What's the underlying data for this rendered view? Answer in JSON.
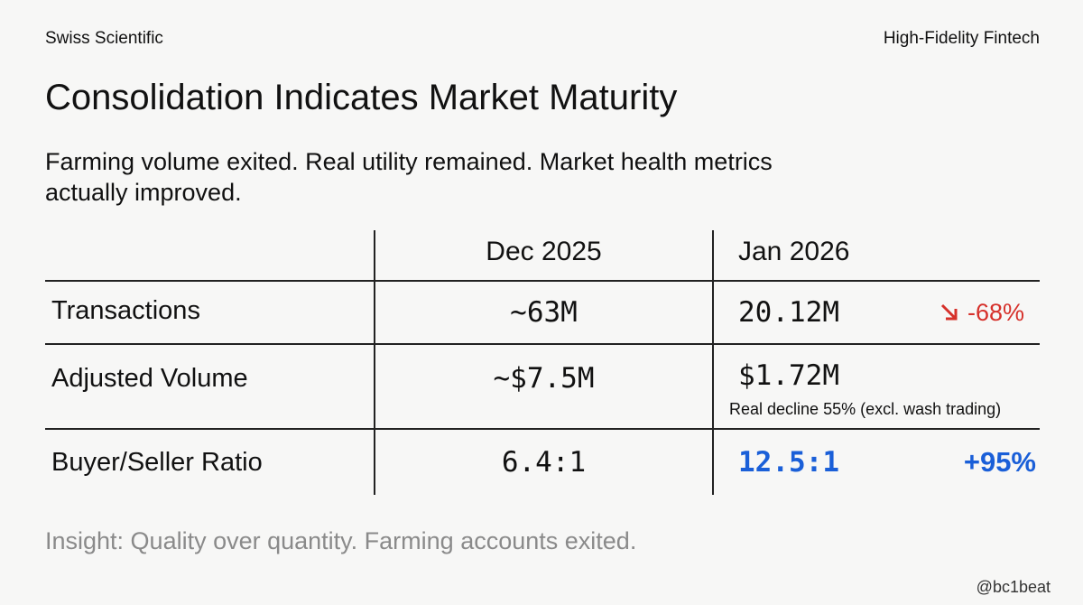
{
  "header": {
    "left": "Swiss Scientific",
    "right": "High-Fidelity Fintech"
  },
  "title": "Consolidation Indicates Market Maturity",
  "subtitle": "Farming volume exited. Real utility remained. Market health metrics actually improved.",
  "table": {
    "columns": [
      "Dec 2025",
      "Jan 2026"
    ],
    "rows": [
      {
        "label": "Transactions",
        "dec": "~63M",
        "jan": "20.12M",
        "change": "-68%"
      },
      {
        "label": "Adjusted Volume",
        "dec": "~$7.5M",
        "jan": "$1.72M",
        "note": "Real decline 55% (excl. wash trading)"
      },
      {
        "label": "Buyer/Seller Ratio",
        "dec": "6.4:1",
        "jan": "12.5:1",
        "change": "+95%"
      }
    ]
  },
  "insight": "Insight: Quality over quantity. Farming accounts exited.",
  "watermark": "@bc1beat"
}
